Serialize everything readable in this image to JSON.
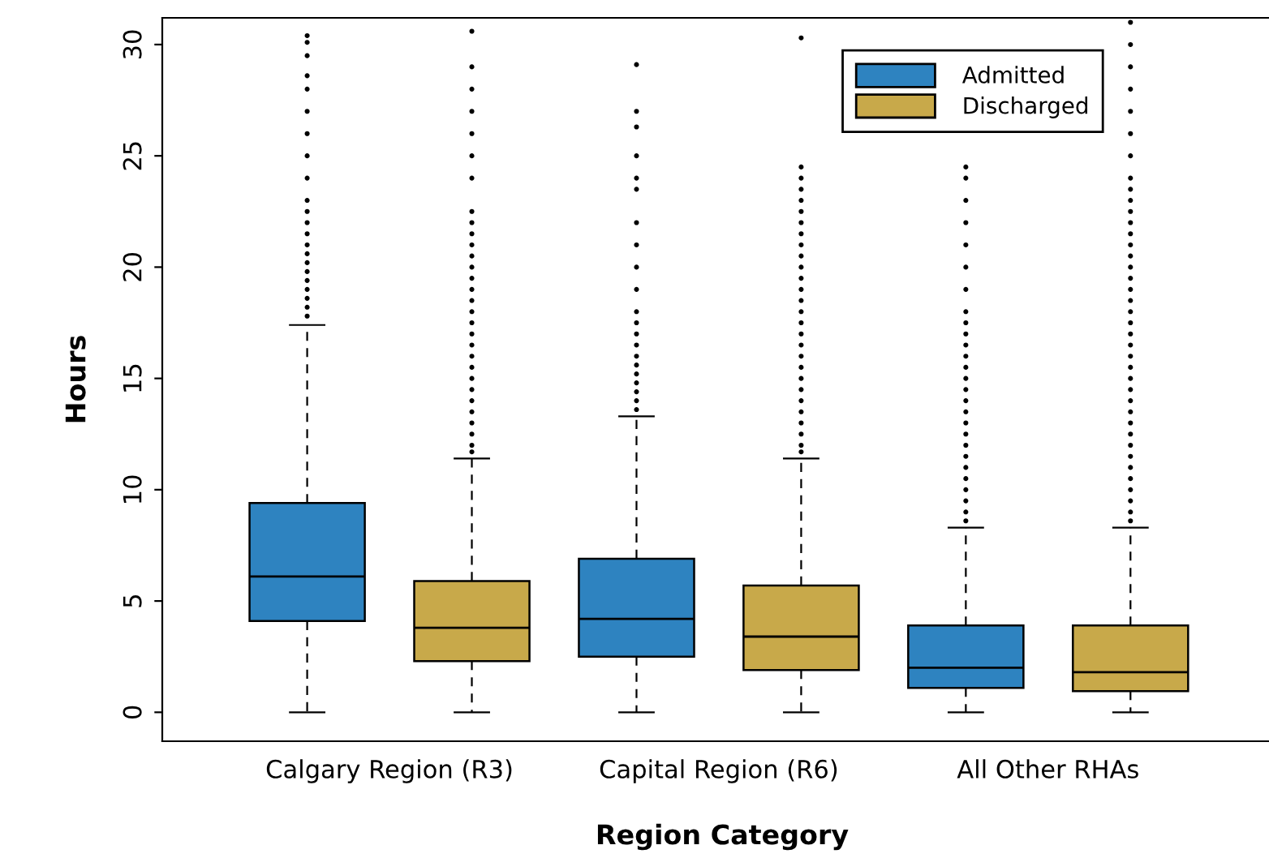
{
  "chart_data": {
    "type": "box",
    "xlabel": "Region Category",
    "ylabel": "Hours",
    "categories": [
      "Calgary Region (R3)",
      "Capital Region (R6)",
      "All Other RHAs"
    ],
    "ylim": [
      -1.3,
      31.2
    ],
    "yticks": [
      0,
      5,
      10,
      15,
      20,
      25,
      30
    ],
    "grid": false,
    "legend": "top right",
    "series": [
      {
        "name": "Admitted",
        "color": "#2e83c0",
        "boxes": [
          {
            "low": 0,
            "q1": 4.1,
            "median": 6.1,
            "q3": 9.4,
            "high": 17.4,
            "outliers": [
              17.8,
              18.2,
              18.6,
              19,
              19.4,
              19.8,
              20.2,
              20.6,
              21,
              21.5,
              22,
              22.5,
              23,
              24,
              25,
              26,
              27,
              28,
              28.6,
              29.5,
              30.1,
              30.4
            ]
          },
          {
            "low": 0,
            "q1": 2.5,
            "median": 4.2,
            "q3": 6.9,
            "high": 13.3,
            "outliers": [
              13.6,
              14,
              14.4,
              14.8,
              15.2,
              15.6,
              16,
              16.5,
              17,
              17.5,
              18,
              19,
              20,
              21,
              22,
              23.5,
              24,
              25,
              26.3,
              27,
              29.1
            ]
          },
          {
            "low": 0,
            "q1": 1.1,
            "median": 2.0,
            "q3": 3.9,
            "high": 8.3,
            "outliers": [
              8.6,
              9,
              9.5,
              10,
              10.5,
              11,
              11.5,
              12,
              12.5,
              13,
              13.5,
              14,
              14.5,
              15,
              15.5,
              16,
              16.5,
              17,
              17.5,
              18,
              19,
              20,
              21,
              22,
              23,
              24,
              24.5
            ]
          }
        ]
      },
      {
        "name": "Discharged",
        "color": "#c8a94a",
        "boxes": [
          {
            "low": 0,
            "q1": 2.3,
            "median": 3.8,
            "q3": 5.9,
            "high": 11.4,
            "outliers": [
              11.7,
              12,
              12.5,
              13,
              13.5,
              14,
              14.5,
              15,
              15.5,
              16,
              16.5,
              17,
              17.5,
              18,
              18.5,
              19,
              19.5,
              20,
              20.5,
              21,
              21.5,
              22,
              22.5,
              24,
              25,
              26,
              27,
              28,
              29,
              30.6
            ]
          },
          {
            "low": 0,
            "q1": 1.9,
            "median": 3.4,
            "q3": 5.7,
            "high": 11.4,
            "outliers": [
              11.7,
              12,
              12.5,
              13,
              13.5,
              14,
              14.5,
              15,
              15.5,
              16,
              16.5,
              17,
              17.5,
              18,
              18.5,
              19,
              19.5,
              20,
              20.5,
              21,
              21.5,
              22,
              22.5,
              23,
              23.5,
              24,
              24.5,
              30.3
            ]
          },
          {
            "low": 0,
            "q1": 0.95,
            "median": 1.8,
            "q3": 3.9,
            "high": 8.3,
            "outliers": [
              8.6,
              9,
              9.5,
              10,
              10.5,
              11,
              11.5,
              12,
              12.5,
              13,
              13.5,
              14,
              14.5,
              15,
              15.5,
              16,
              16.5,
              17,
              17.5,
              18,
              18.5,
              19,
              19.5,
              20,
              20.5,
              21,
              21.5,
              22,
              22.5,
              23,
              23.5,
              24,
              25,
              26,
              27,
              28,
              29,
              30,
              31
            ]
          }
        ]
      }
    ]
  }
}
